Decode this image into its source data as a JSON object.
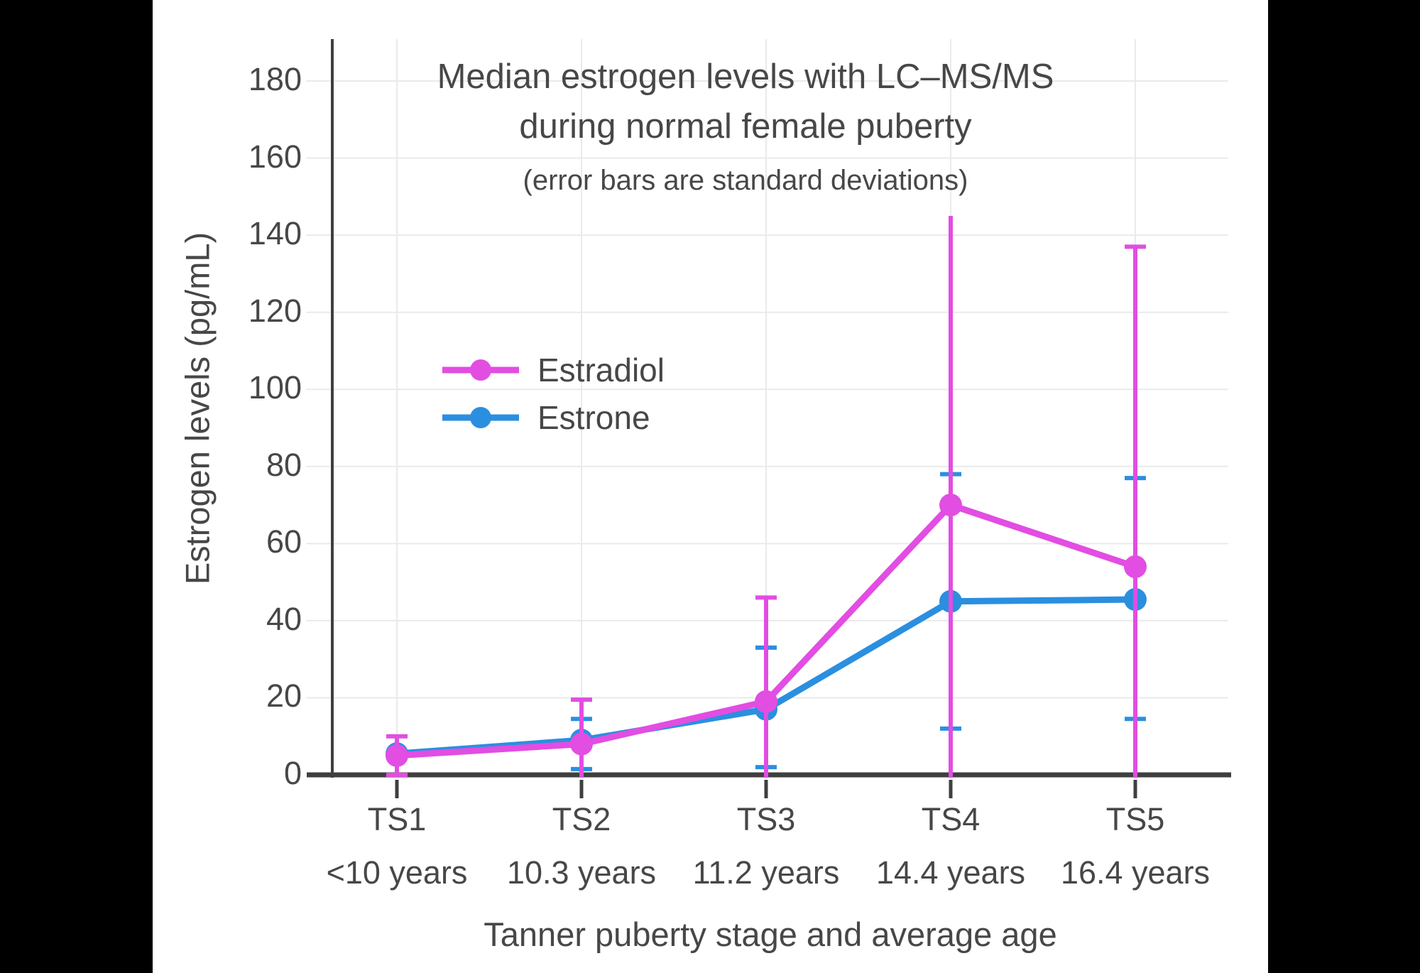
{
  "chart_data": {
    "type": "line",
    "title_line1": "Median estrogen levels with LC–MS/MS",
    "title_line2": "during normal female puberty",
    "subtitle": "(error bars are standard deviations)",
    "x_title": "Tanner puberty stage and average age",
    "y_title": "Estrogen levels (pg/mL)",
    "ylim": [
      0,
      190
    ],
    "y_ticks": [
      0,
      20,
      40,
      60,
      80,
      100,
      120,
      140,
      160,
      180
    ],
    "grid": true,
    "categories": [
      {
        "stage": "TS1",
        "age": "<10 years"
      },
      {
        "stage": "TS2",
        "age": "10.3 years"
      },
      {
        "stage": "TS3",
        "age": "11.2 years"
      },
      {
        "stage": "TS4",
        "age": "14.4 years"
      },
      {
        "stage": "TS5",
        "age": "16.4 years"
      }
    ],
    "legend": {
      "position": "upper-left-inside",
      "items": [
        {
          "label": "Estradiol",
          "color": "#E24DE2"
        },
        {
          "label": "Estrone",
          "color": "#2B8FE0"
        }
      ]
    },
    "series": [
      {
        "name": "Estrone",
        "color": "#2B8FE0",
        "values": [
          5.5,
          9,
          17,
          45,
          45.5
        ],
        "error_upper": [
          null,
          14.5,
          33,
          78,
          77
        ],
        "error_lower": [
          null,
          1.5,
          2,
          12,
          14.5
        ],
        "upper_cap": [
          false,
          true,
          true,
          true,
          true
        ],
        "lower_cap": [
          false,
          true,
          true,
          true,
          true
        ]
      },
      {
        "name": "Estradiol",
        "color": "#E24DE2",
        "values": [
          5,
          8,
          19,
          70,
          54
        ],
        "error_upper": [
          10,
          19.5,
          46,
          145,
          137
        ],
        "error_lower": [
          0,
          -4,
          -8,
          -5,
          -29
        ],
        "upper_cap": [
          true,
          true,
          true,
          false,
          true
        ],
        "lower_cap": [
          true,
          false,
          false,
          false,
          false
        ]
      }
    ],
    "colors": {
      "axis": "#3f3f3f",
      "gridline": "#eaeaea",
      "y_tick": "#e2e2e2",
      "text": "#474747",
      "background": "#ffffff",
      "frame": "#000000"
    }
  }
}
